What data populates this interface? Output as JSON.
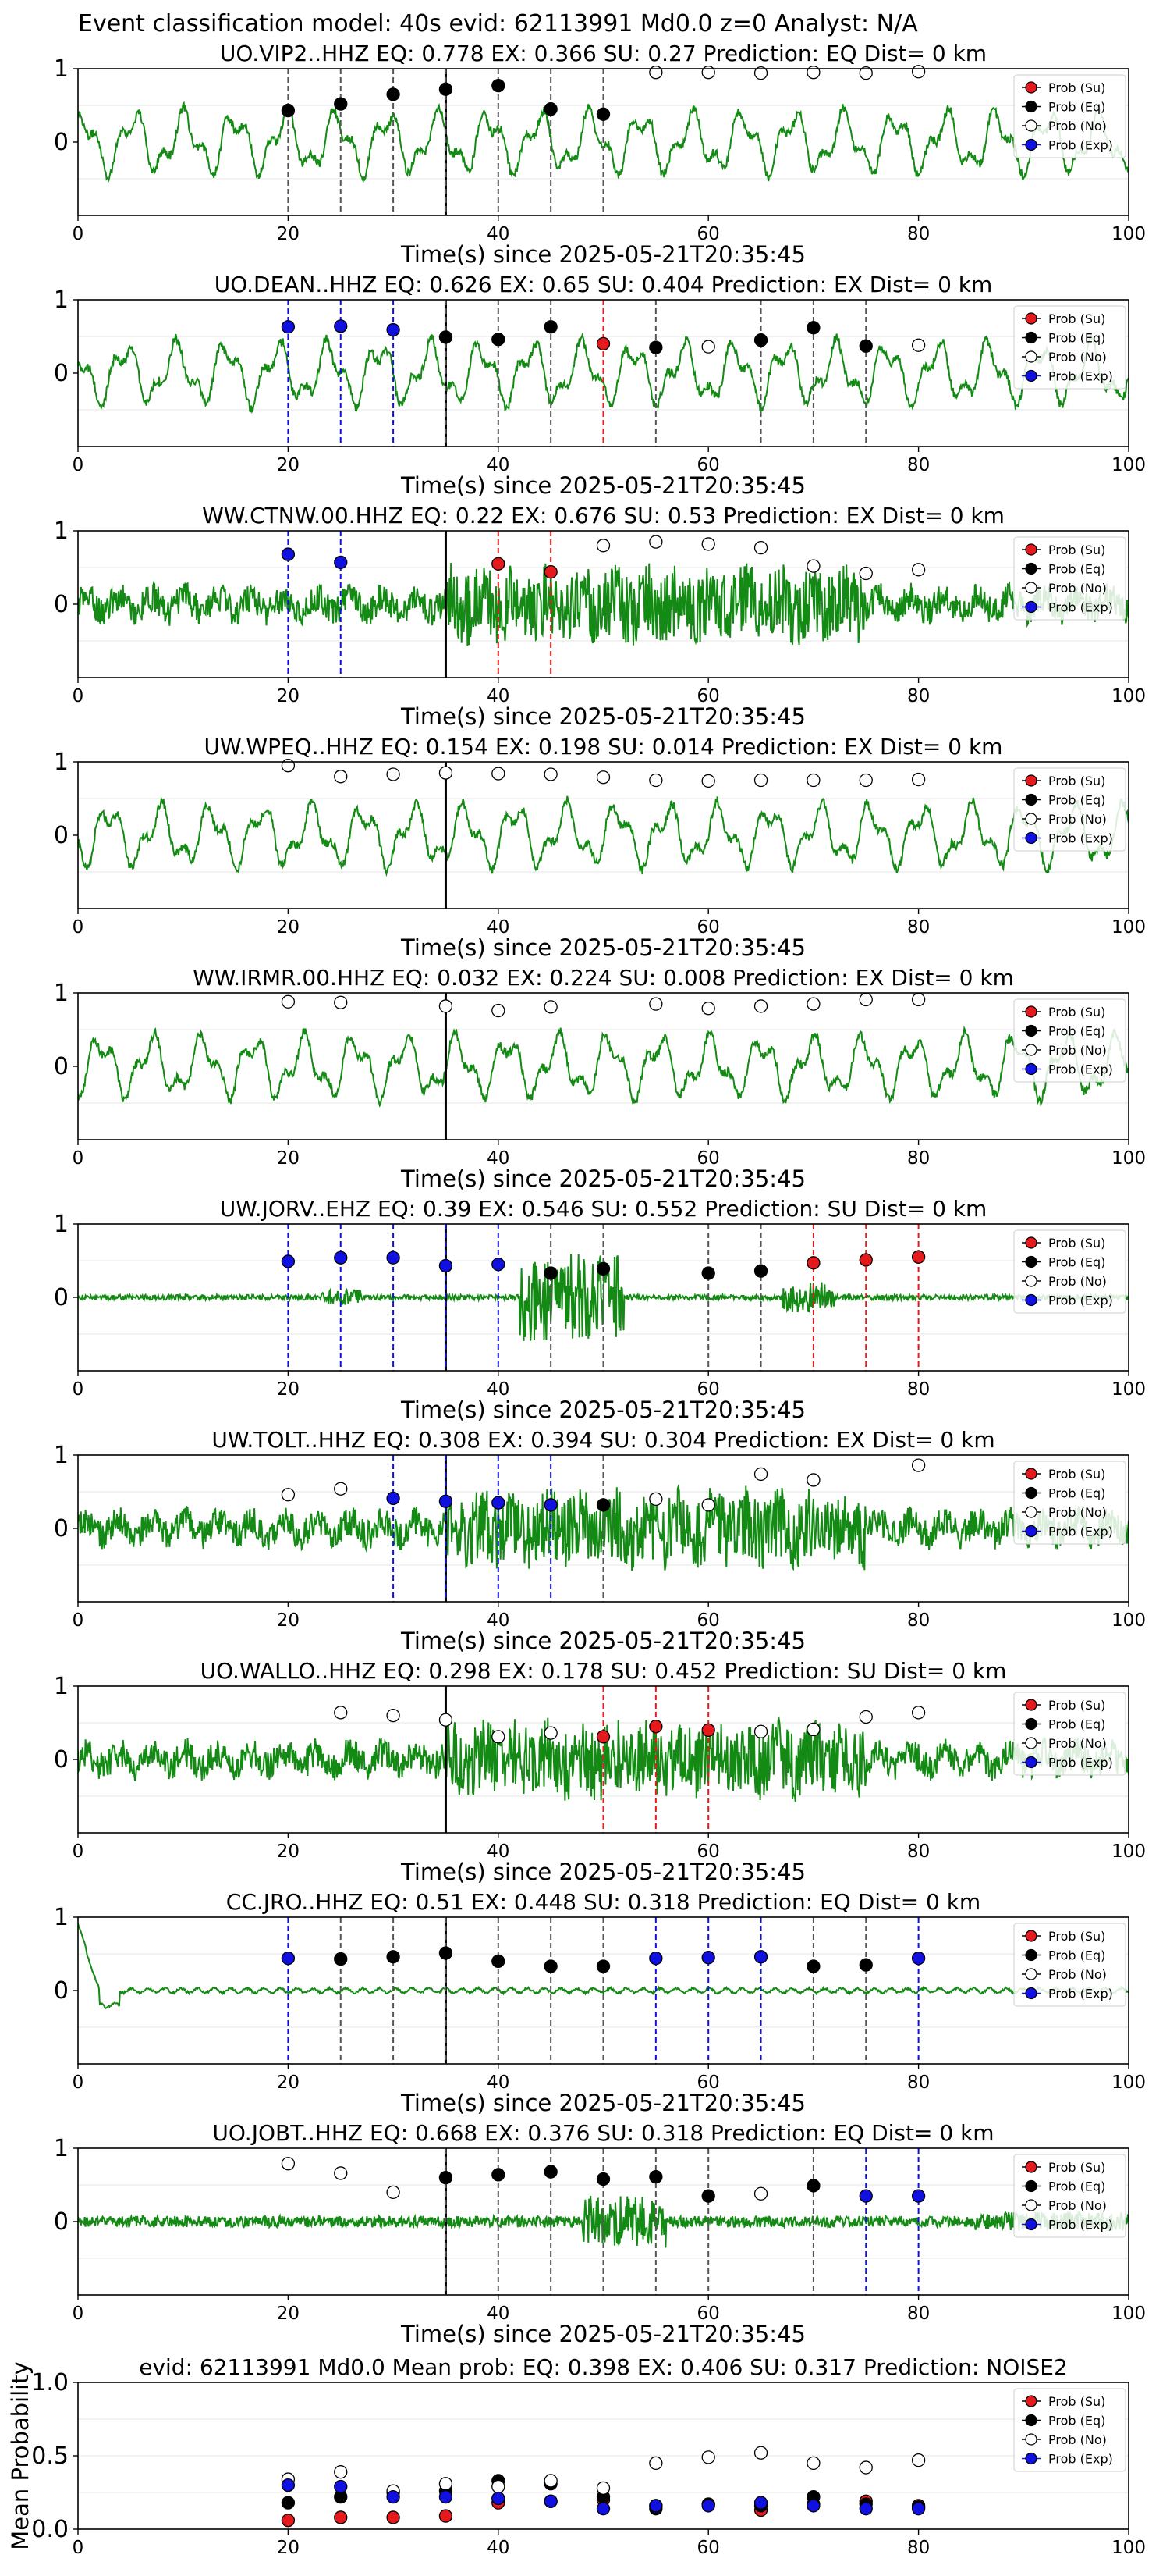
{
  "figure": {
    "title": "Event classification model: 40s evid: 62113991 Md0.0 z=0 Analyst: N/A"
  },
  "legend_labels": [
    "Prob (Su)",
    "Prob (Eq)",
    "Prob (No)",
    "Prob (Exp)"
  ],
  "colors": {
    "su": "#e41a1c",
    "eq": "#000000",
    "no": "#ffffff",
    "exp": "#1010e0",
    "trace": "#138a13",
    "noise_line": "#555555"
  },
  "chart_data": [
    {
      "type": "line",
      "title": "UO.VIP2..HHZ   EQ: 0.778   EX: 0.366   SU: 0.27    Prediction: EQ    Dist= 0 km",
      "xlabel": "Time(s) since 2025-05-21T20:35:45",
      "xlim": [
        0,
        100
      ],
      "ylim": [
        -1,
        1
      ],
      "xticks": [
        "0",
        "20",
        "40",
        "60",
        "80",
        "100"
      ],
      "yticks": [
        "0",
        "1"
      ],
      "pick_time": 35,
      "trace_style": "low",
      "points": [
        {
          "x": 20,
          "y": 0.43,
          "class": "eq"
        },
        {
          "x": 25,
          "y": 0.52,
          "class": "eq"
        },
        {
          "x": 30,
          "y": 0.65,
          "class": "eq"
        },
        {
          "x": 35,
          "y": 0.72,
          "class": "eq"
        },
        {
          "x": 40,
          "y": 0.77,
          "class": "eq"
        },
        {
          "x": 45,
          "y": 0.45,
          "class": "eq"
        },
        {
          "x": 50,
          "y": 0.38,
          "class": "eq"
        },
        {
          "x": 55,
          "y": 0.95,
          "class": "no"
        },
        {
          "x": 60,
          "y": 0.95,
          "class": "no"
        },
        {
          "x": 65,
          "y": 0.94,
          "class": "no"
        },
        {
          "x": 70,
          "y": 0.95,
          "class": "no"
        },
        {
          "x": 75,
          "y": 0.94,
          "class": "no"
        },
        {
          "x": 80,
          "y": 0.96,
          "class": "no"
        }
      ]
    },
    {
      "type": "line",
      "title": "UO.DEAN..HHZ   EQ: 0.626  EX: 0.65  SU: 0.404   Prediction: EX    Dist= 0 km",
      "xlabel": "Time(s) since 2025-05-21T20:35:45",
      "xlim": [
        0,
        100
      ],
      "ylim": [
        -1,
        1
      ],
      "xticks": [
        "0",
        "20",
        "40",
        "60",
        "80",
        "100"
      ],
      "yticks": [
        "0",
        "1"
      ],
      "pick_time": 35,
      "trace_style": "low",
      "points": [
        {
          "x": 20,
          "y": 0.63,
          "class": "exp"
        },
        {
          "x": 25,
          "y": 0.64,
          "class": "exp"
        },
        {
          "x": 30,
          "y": 0.59,
          "class": "exp"
        },
        {
          "x": 35,
          "y": 0.49,
          "class": "eq"
        },
        {
          "x": 40,
          "y": 0.46,
          "class": "eq"
        },
        {
          "x": 45,
          "y": 0.63,
          "class": "eq"
        },
        {
          "x": 50,
          "y": 0.4,
          "class": "su"
        },
        {
          "x": 55,
          "y": 0.35,
          "class": "eq"
        },
        {
          "x": 60,
          "y": 0.36,
          "class": "no"
        },
        {
          "x": 65,
          "y": 0.45,
          "class": "eq"
        },
        {
          "x": 70,
          "y": 0.62,
          "class": "eq"
        },
        {
          "x": 75,
          "y": 0.37,
          "class": "eq"
        },
        {
          "x": 80,
          "y": 0.38,
          "class": "no"
        }
      ]
    },
    {
      "type": "line",
      "title": "WW.CTNW.00.HHZ   EQ: 0.22  EX: 0.676  SU: 0.53   Prediction: EX    Dist= 0 km",
      "xlabel": "Time(s) since 2025-05-21T20:35:45",
      "xlim": [
        0,
        100
      ],
      "ylim": [
        -1,
        1
      ],
      "xticks": [
        "0",
        "20",
        "40",
        "60",
        "80",
        "100"
      ],
      "yticks": [
        "0",
        "1"
      ],
      "pick_time": 35,
      "trace_style": "noisy",
      "points": [
        {
          "x": 20,
          "y": 0.68,
          "class": "exp"
        },
        {
          "x": 25,
          "y": 0.57,
          "class": "exp"
        },
        {
          "x": 40,
          "y": 0.55,
          "class": "su"
        },
        {
          "x": 45,
          "y": 0.44,
          "class": "su"
        },
        {
          "x": 50,
          "y": 0.8,
          "class": "no"
        },
        {
          "x": 55,
          "y": 0.85,
          "class": "no"
        },
        {
          "x": 60,
          "y": 0.82,
          "class": "no"
        },
        {
          "x": 65,
          "y": 0.77,
          "class": "no"
        },
        {
          "x": 70,
          "y": 0.52,
          "class": "no"
        },
        {
          "x": 75,
          "y": 0.42,
          "class": "no"
        },
        {
          "x": 80,
          "y": 0.47,
          "class": "no"
        }
      ]
    },
    {
      "type": "line",
      "title": "UW.WPEQ..HHZ   EQ: 0.154  EX: 0.198  SU: 0.014   Prediction: EX    Dist= 0 km",
      "xlabel": "Time(s) since 2025-05-21T20:35:45",
      "xlim": [
        0,
        100
      ],
      "ylim": [
        -1,
        1
      ],
      "xticks": [
        "0",
        "20",
        "40",
        "60",
        "80",
        "100"
      ],
      "yticks": [
        "0",
        "1"
      ],
      "pick_time": 35,
      "trace_style": "low",
      "points": [
        {
          "x": 20,
          "y": 0.95,
          "class": "no"
        },
        {
          "x": 25,
          "y": 0.8,
          "class": "no"
        },
        {
          "x": 30,
          "y": 0.83,
          "class": "no"
        },
        {
          "x": 35,
          "y": 0.85,
          "class": "no"
        },
        {
          "x": 40,
          "y": 0.84,
          "class": "no"
        },
        {
          "x": 45,
          "y": 0.83,
          "class": "no"
        },
        {
          "x": 50,
          "y": 0.79,
          "class": "no"
        },
        {
          "x": 55,
          "y": 0.75,
          "class": "no"
        },
        {
          "x": 60,
          "y": 0.74,
          "class": "no"
        },
        {
          "x": 65,
          "y": 0.75,
          "class": "no"
        },
        {
          "x": 70,
          "y": 0.75,
          "class": "no"
        },
        {
          "x": 75,
          "y": 0.75,
          "class": "no"
        },
        {
          "x": 80,
          "y": 0.76,
          "class": "no"
        }
      ]
    },
    {
      "type": "line",
      "title": "WW.IRMR.00.HHZ   EQ: 0.032  EX: 0.224  SU: 0.008   Prediction: EX    Dist= 0 km",
      "xlabel": "Time(s) since 2025-05-21T20:35:45",
      "xlim": [
        0,
        100
      ],
      "ylim": [
        -1,
        1
      ],
      "xticks": [
        "0",
        "20",
        "40",
        "60",
        "80",
        "100"
      ],
      "yticks": [
        "0",
        "1"
      ],
      "pick_time": 35,
      "trace_style": "low",
      "points": [
        {
          "x": 20,
          "y": 0.88,
          "class": "no"
        },
        {
          "x": 25,
          "y": 0.87,
          "class": "no"
        },
        {
          "x": 35,
          "y": 0.82,
          "class": "no"
        },
        {
          "x": 40,
          "y": 0.76,
          "class": "no"
        },
        {
          "x": 45,
          "y": 0.81,
          "class": "no"
        },
        {
          "x": 55,
          "y": 0.85,
          "class": "no"
        },
        {
          "x": 60,
          "y": 0.79,
          "class": "no"
        },
        {
          "x": 65,
          "y": 0.82,
          "class": "no"
        },
        {
          "x": 70,
          "y": 0.85,
          "class": "no"
        },
        {
          "x": 75,
          "y": 0.91,
          "class": "no"
        },
        {
          "x": 80,
          "y": 0.91,
          "class": "no"
        }
      ]
    },
    {
      "type": "line",
      "title": "UW.JORV..EHZ   EQ: 0.39  EX: 0.546  SU: 0.552   Prediction: SU    Dist= 0 km",
      "xlabel": "Time(s) since 2025-05-21T20:35:45",
      "xlim": [
        0,
        100
      ],
      "ylim": [
        -1,
        1
      ],
      "xticks": [
        "0",
        "20",
        "40",
        "60",
        "80",
        "100"
      ],
      "yticks": [
        "0",
        "1"
      ],
      "pick_time": 35,
      "trace_style": "burst",
      "points": [
        {
          "x": 20,
          "y": 0.49,
          "class": "exp"
        },
        {
          "x": 25,
          "y": 0.54,
          "class": "exp"
        },
        {
          "x": 30,
          "y": 0.54,
          "class": "exp"
        },
        {
          "x": 35,
          "y": 0.43,
          "class": "exp"
        },
        {
          "x": 40,
          "y": 0.45,
          "class": "exp"
        },
        {
          "x": 45,
          "y": 0.33,
          "class": "eq"
        },
        {
          "x": 50,
          "y": 0.39,
          "class": "eq"
        },
        {
          "x": 60,
          "y": 0.33,
          "class": "eq"
        },
        {
          "x": 65,
          "y": 0.36,
          "class": "eq"
        },
        {
          "x": 70,
          "y": 0.47,
          "class": "su"
        },
        {
          "x": 75,
          "y": 0.51,
          "class": "su"
        },
        {
          "x": 80,
          "y": 0.55,
          "class": "su"
        }
      ]
    },
    {
      "type": "line",
      "title": "UW.TOLT..HHZ   EQ: 0.308  EX: 0.394  SU: 0.304   Prediction: EX    Dist= 0 km",
      "xlabel": "Time(s) since 2025-05-21T20:35:45",
      "xlim": [
        0,
        100
      ],
      "ylim": [
        -1,
        1
      ],
      "xticks": [
        "0",
        "20",
        "40",
        "60",
        "80",
        "100"
      ],
      "yticks": [
        "0",
        "1"
      ],
      "pick_time": 35,
      "trace_style": "noisy",
      "points": [
        {
          "x": 20,
          "y": 0.46,
          "class": "no"
        },
        {
          "x": 25,
          "y": 0.54,
          "class": "no"
        },
        {
          "x": 30,
          "y": 0.41,
          "class": "exp"
        },
        {
          "x": 35,
          "y": 0.37,
          "class": "exp"
        },
        {
          "x": 40,
          "y": 0.35,
          "class": "exp"
        },
        {
          "x": 45,
          "y": 0.32,
          "class": "exp"
        },
        {
          "x": 50,
          "y": 0.32,
          "class": "eq"
        },
        {
          "x": 55,
          "y": 0.4,
          "class": "no"
        },
        {
          "x": 60,
          "y": 0.32,
          "class": "no"
        },
        {
          "x": 65,
          "y": 0.74,
          "class": "no"
        },
        {
          "x": 70,
          "y": 0.66,
          "class": "no"
        },
        {
          "x": 80,
          "y": 0.86,
          "class": "no"
        }
      ]
    },
    {
      "type": "line",
      "title": "UO.WALLO..HHZ   EQ: 0.298  EX: 0.178  SU: 0.452   Prediction: SU    Dist= 0 km",
      "xlabel": "Time(s) since 2025-05-21T20:35:45",
      "xlim": [
        0,
        100
      ],
      "ylim": [
        -1,
        1
      ],
      "xticks": [
        "0",
        "20",
        "40",
        "60",
        "80",
        "100"
      ],
      "yticks": [
        "0",
        "1"
      ],
      "pick_time": 35,
      "trace_style": "noisy",
      "points": [
        {
          "x": 25,
          "y": 0.64,
          "class": "no"
        },
        {
          "x": 30,
          "y": 0.6,
          "class": "no"
        },
        {
          "x": 35,
          "y": 0.54,
          "class": "no"
        },
        {
          "x": 40,
          "y": 0.31,
          "class": "no"
        },
        {
          "x": 45,
          "y": 0.36,
          "class": "no"
        },
        {
          "x": 50,
          "y": 0.31,
          "class": "su"
        },
        {
          "x": 55,
          "y": 0.45,
          "class": "su"
        },
        {
          "x": 60,
          "y": 0.4,
          "class": "su"
        },
        {
          "x": 65,
          "y": 0.38,
          "class": "no"
        },
        {
          "x": 70,
          "y": 0.41,
          "class": "no"
        },
        {
          "x": 75,
          "y": 0.58,
          "class": "no"
        },
        {
          "x": 80,
          "y": 0.64,
          "class": "no"
        }
      ]
    },
    {
      "type": "line",
      "title": "CC.JRO..HHZ   EQ: 0.51  EX: 0.448  SU: 0.318   Prediction: EQ    Dist= 0 km",
      "xlabel": "Time(s) since 2025-05-21T20:35:45",
      "xlim": [
        0,
        100
      ],
      "ylim": [
        -1,
        1
      ],
      "xticks": [
        "0",
        "20",
        "40",
        "60",
        "80",
        "100"
      ],
      "yticks": [
        "0",
        "1"
      ],
      "pick_time": 35,
      "trace_style": "flat",
      "points": [
        {
          "x": 20,
          "y": 0.44,
          "class": "exp"
        },
        {
          "x": 25,
          "y": 0.43,
          "class": "eq"
        },
        {
          "x": 30,
          "y": 0.46,
          "class": "eq"
        },
        {
          "x": 35,
          "y": 0.51,
          "class": "eq"
        },
        {
          "x": 40,
          "y": 0.4,
          "class": "eq"
        },
        {
          "x": 45,
          "y": 0.33,
          "class": "eq"
        },
        {
          "x": 50,
          "y": 0.33,
          "class": "eq"
        },
        {
          "x": 55,
          "y": 0.44,
          "class": "exp"
        },
        {
          "x": 60,
          "y": 0.45,
          "class": "exp"
        },
        {
          "x": 65,
          "y": 0.46,
          "class": "exp"
        },
        {
          "x": 70,
          "y": 0.33,
          "class": "eq"
        },
        {
          "x": 75,
          "y": 0.35,
          "class": "eq"
        },
        {
          "x": 80,
          "y": 0.44,
          "class": "exp"
        }
      ]
    },
    {
      "type": "line",
      "title": "UO.JOBT..HHZ   EQ: 0.668  EX: 0.376  SU: 0.318   Prediction: EQ    Dist= 0 km",
      "xlabel": "Time(s) since 2025-05-21T20:35:45",
      "xlim": [
        0,
        100
      ],
      "ylim": [
        -1,
        1
      ],
      "xticks": [
        "0",
        "20",
        "40",
        "60",
        "80",
        "100"
      ],
      "yticks": [
        "0",
        "1"
      ],
      "pick_time": 35,
      "trace_style": "quiet",
      "points": [
        {
          "x": 20,
          "y": 0.79,
          "class": "no"
        },
        {
          "x": 25,
          "y": 0.66,
          "class": "no"
        },
        {
          "x": 30,
          "y": 0.4,
          "class": "no"
        },
        {
          "x": 35,
          "y": 0.6,
          "class": "eq"
        },
        {
          "x": 40,
          "y": 0.64,
          "class": "eq"
        },
        {
          "x": 45,
          "y": 0.68,
          "class": "eq"
        },
        {
          "x": 50,
          "y": 0.58,
          "class": "eq"
        },
        {
          "x": 55,
          "y": 0.61,
          "class": "eq"
        },
        {
          "x": 60,
          "y": 0.35,
          "class": "eq"
        },
        {
          "x": 65,
          "y": 0.38,
          "class": "no"
        },
        {
          "x": 70,
          "y": 0.49,
          "class": "eq"
        },
        {
          "x": 75,
          "y": 0.35,
          "class": "exp"
        },
        {
          "x": 80,
          "y": 0.35,
          "class": "exp"
        }
      ]
    },
    {
      "type": "scatter",
      "title": "evid: 62113991  Md0.0   Mean prob:   EQ: 0.398  EX: 0.406  SU: 0.317   Prediction: NOISE2",
      "ylabel": "Mean Probability",
      "xlim": [
        0,
        100
      ],
      "ylim": [
        0,
        1
      ],
      "xticks": [
        "0",
        "20",
        "40",
        "60",
        "80",
        "100"
      ],
      "yticks": [
        "0.0",
        "0.5",
        "1.0"
      ],
      "x": [
        20,
        25,
        30,
        35,
        40,
        45,
        50,
        55,
        60,
        65,
        70,
        75,
        80
      ],
      "series": [
        {
          "name": "Prob (Su)",
          "class": "su",
          "values": [
            0.06,
            0.08,
            0.08,
            0.09,
            0.18,
            0.19,
            0.2,
            0.16,
            0.17,
            0.13,
            0.17,
            0.19,
            0.16
          ]
        },
        {
          "name": "Prob (Eq)",
          "class": "eq",
          "values": [
            0.18,
            0.22,
            0.25,
            0.26,
            0.33,
            0.31,
            0.22,
            0.14,
            0.17,
            0.16,
            0.22,
            0.17,
            0.15
          ]
        },
        {
          "name": "Prob (No)",
          "class": "no",
          "values": [
            0.34,
            0.39,
            0.26,
            0.31,
            0.29,
            0.33,
            0.28,
            0.45,
            0.49,
            0.52,
            0.45,
            0.42,
            0.47
          ]
        },
        {
          "name": "Prob (Exp)",
          "class": "exp",
          "values": [
            0.3,
            0.29,
            0.22,
            0.22,
            0.21,
            0.19,
            0.14,
            0.16,
            0.16,
            0.18,
            0.16,
            0.14,
            0.14
          ]
        }
      ]
    }
  ]
}
